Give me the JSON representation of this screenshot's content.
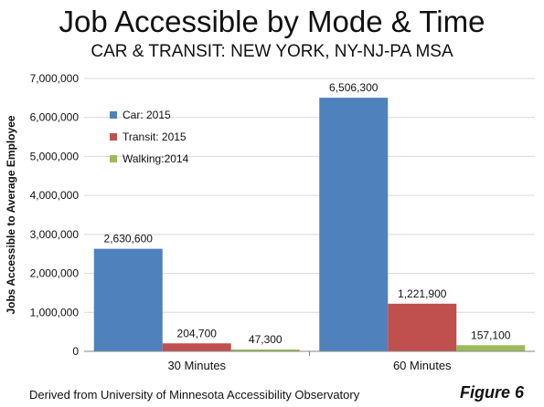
{
  "colors": {
    "car": "#4f81bd",
    "transit": "#c0504d",
    "walking": "#9bbb59",
    "gridline": "#d9d9d9",
    "axis": "#868686"
  },
  "footer": {
    "source": "Derived from University of Minnesota Accessibility Observatory",
    "figure": "Figure 6"
  },
  "chart_data": {
    "type": "bar",
    "title": "Job Accessible by Mode & Time",
    "subtitle": "CAR & TRANSIT: NEW YORK, NY-NJ-PA MSA",
    "xlabel": "",
    "ylabel": "Jobs Accessible to Average Employee",
    "ylim": [
      0,
      7000000
    ],
    "yticks": [
      0,
      1000000,
      2000000,
      3000000,
      4000000,
      5000000,
      6000000,
      7000000
    ],
    "ytick_labels": [
      "0",
      "1,000,000",
      "2,000,000",
      "3,000,000",
      "4,000,000",
      "5,000,000",
      "6,000,000",
      "7,000,000"
    ],
    "grid": true,
    "legend_position": "top-left",
    "categories": [
      "30 Minutes",
      "60 Minutes"
    ],
    "series": [
      {
        "name": "Car: 2015",
        "color_key": "car",
        "values": [
          2630600,
          6506300
        ],
        "labels": [
          "2,630,600",
          "6,506,300"
        ]
      },
      {
        "name": "Transit: 2015",
        "color_key": "transit",
        "values": [
          204700,
          1221900
        ],
        "labels": [
          "204,700",
          "1,221,900"
        ]
      },
      {
        "name": "Walking:2014",
        "color_key": "walking",
        "values": [
          47300,
          157100
        ],
        "labels": [
          "47,300",
          "157,100"
        ]
      }
    ]
  }
}
